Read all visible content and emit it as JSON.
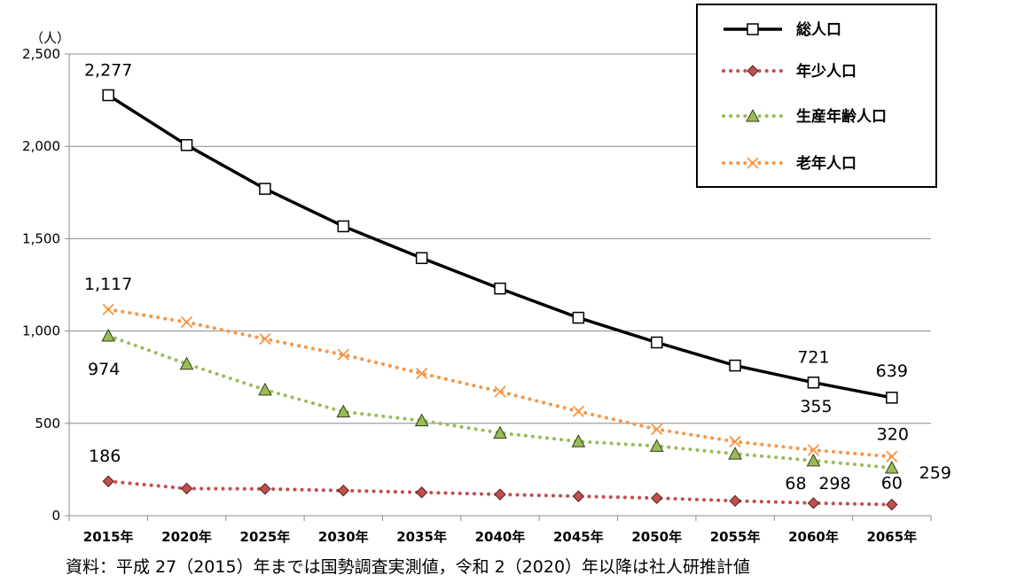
{
  "chart_data": {
    "type": "line",
    "ylabel": "（人）",
    "ylim": [
      0,
      2500
    ],
    "yticks": [
      "0",
      "500",
      "1,000",
      "1,500",
      "2,000",
      "2,500"
    ],
    "ytick_values": [
      0,
      500,
      1000,
      1500,
      2000,
      2500
    ],
    "categories": [
      "2015年",
      "2020年",
      "2025年",
      "2030年",
      "2035年",
      "2040年",
      "2045年",
      "2050年",
      "2055年",
      "2060年",
      "2065年"
    ],
    "grid": "horizontal",
    "legend_position": "top-right",
    "series": [
      {
        "name": "総人口",
        "color": "#000000",
        "style": "solid",
        "marker": "square",
        "values": [
          2277,
          2007,
          1770,
          1567,
          1395,
          1230,
          1072,
          938,
          813,
          721,
          639
        ],
        "labels": [
          "2,277",
          "",
          "",
          "",
          "",
          "",
          "",
          "",
          "",
          "721",
          "639"
        ]
      },
      {
        "name": "年少人口",
        "color": "#c0504d",
        "style": "dotted",
        "marker": "diamond",
        "values": [
          186,
          147,
          145,
          136,
          126,
          115,
          105,
          95,
          80,
          68,
          60
        ],
        "labels": [
          "186",
          "",
          "",
          "",
          "",
          "",
          "",
          "",
          "",
          "68",
          "60"
        ]
      },
      {
        "name": "生産年齢人口",
        "color": "#9bbb59",
        "style": "dotted",
        "marker": "triangle",
        "values": [
          974,
          822,
          682,
          563,
          515,
          448,
          402,
          377,
          335,
          298,
          259
        ],
        "labels": [
          "974",
          "",
          "",
          "",
          "",
          "",
          "",
          "",
          "",
          "298",
          "259"
        ]
      },
      {
        "name": "老年人口",
        "color": "#f79646",
        "style": "dotted",
        "marker": "x",
        "values": [
          1117,
          1048,
          957,
          872,
          770,
          672,
          565,
          468,
          401,
          355,
          320
        ],
        "labels": [
          "1,117",
          "",
          "",
          "",
          "",
          "",
          "",
          "",
          "",
          "355",
          "320"
        ]
      }
    ],
    "source_note": "資料：平成 27（2015）年までは国勢調査実測値，令和 2（2020）年以降は社人研推計値"
  }
}
